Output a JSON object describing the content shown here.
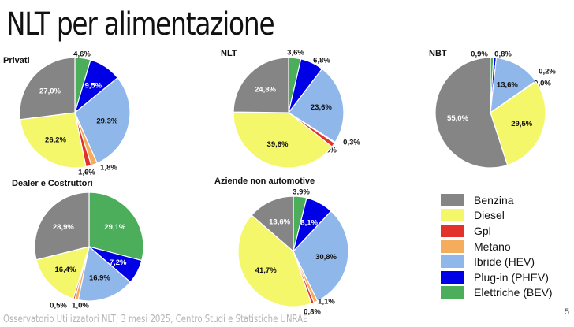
{
  "title": "NLT per alimentazione",
  "footer": "Osservatorio Utilizzatori NLT, 3 mesi 2025, Centro Studi e Statistiche UNRAE",
  "page_number": "5",
  "chart_data": [
    {
      "type": "pie",
      "title": "Privati",
      "categories": [
        "Elettriche (BEV)",
        "Plug-in (PHEV)",
        "Ibride (HEV)",
        "Metano",
        "Gpl",
        "Diesel",
        "Benzina"
      ],
      "values": [
        4.6,
        9.5,
        29.3,
        1.8,
        1.6,
        26.2,
        27.0
      ],
      "labels": [
        "4,6%",
        "9,5%",
        "29,3%",
        "1,8%",
        "1,6%",
        "26,2%",
        "27,0%"
      ]
    },
    {
      "type": "pie",
      "title": "NLT",
      "categories": [
        "Elettriche (BEV)",
        "Plug-in (PHEV)",
        "Ibride (HEV)",
        "Metano",
        "Gpl",
        "Diesel",
        "Benzina"
      ],
      "values": [
        3.6,
        6.8,
        23.6,
        0.3,
        1.3,
        39.6,
        24.8
      ],
      "labels": [
        "3,6%",
        "6,8%",
        "23,6%",
        "0,3%",
        "1,3%",
        "39,6%",
        "24,8%"
      ]
    },
    {
      "type": "pie",
      "title": "NBT",
      "categories": [
        "Elettriche (BEV)",
        "Plug-in (PHEV)",
        "Ibride (HEV)",
        "Metano",
        "Gpl",
        "Diesel",
        "Benzina"
      ],
      "values": [
        0.9,
        0.8,
        13.6,
        0.2,
        0.0,
        29.5,
        55.0
      ],
      "labels": [
        "0,9%",
        "0,8%",
        "13,6%",
        "0,2%",
        "0,0%",
        "29,5%",
        "55,0%"
      ]
    },
    {
      "type": "pie",
      "title": "Dealer e Costruttori",
      "categories": [
        "Elettriche (BEV)",
        "Plug-in (PHEV)",
        "Ibride (HEV)",
        "Metano",
        "Gpl",
        "Diesel",
        "Benzina"
      ],
      "values": [
        29.1,
        7.2,
        16.9,
        1.0,
        0.5,
        16.4,
        28.9
      ],
      "labels": [
        "29,1%",
        "7,2%",
        "16,9%",
        "1,0%",
        "0,5%",
        "16,4%",
        "28,9%"
      ]
    },
    {
      "type": "pie",
      "title": "Aziende non automotive",
      "categories": [
        "Elettriche (BEV)",
        "Plug-in (PHEV)",
        "Ibride (HEV)",
        "Metano",
        "Gpl",
        "Diesel",
        "Benzina"
      ],
      "values": [
        3.9,
        8.1,
        30.8,
        1.1,
        0.8,
        41.7,
        13.6
      ],
      "labels": [
        "3,9%",
        "8,1%",
        "30,8%",
        "1,1%",
        "0,8%",
        "41,7%",
        "13,6%"
      ]
    }
  ],
  "colors": {
    "Elettriche (BEV)": "#4cae5a",
    "Plug-in (PHEV)": "#0000e6",
    "Ibride (HEV)": "#8fb7ea",
    "Metano": "#f4ad5c",
    "Gpl": "#e2322b",
    "Diesel": "#f5f76a",
    "Benzina": "#858585"
  },
  "label_colors": {
    "Elettriche (BEV)": "#ffffff",
    "Plug-in (PHEV)": "#ffffff",
    "Ibride (HEV)": "#111111",
    "Diesel": "#111111",
    "Benzina": "#ffffff"
  },
  "legend": [
    {
      "label": "Benzina",
      "color": "#858585"
    },
    {
      "label": "Diesel",
      "color": "#f5f76a"
    },
    {
      "label": "Gpl",
      "color": "#e2322b"
    },
    {
      "label": "Metano",
      "color": "#f4ad5c"
    },
    {
      "label": "Ibride (HEV)",
      "color": "#8fb7ea"
    },
    {
      "label": "Plug-in (PHEV)",
      "color": "#0000e6"
    },
    {
      "label": "Elettriche (BEV)",
      "color": "#4cae5a"
    }
  ]
}
